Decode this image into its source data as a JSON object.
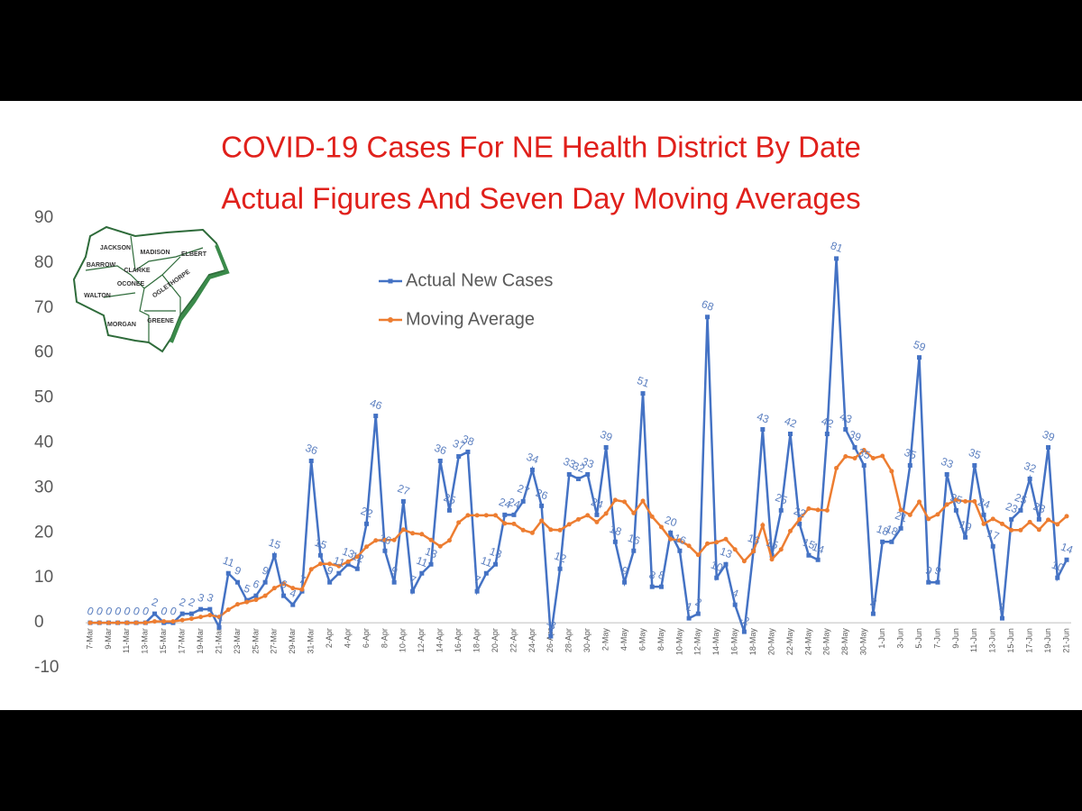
{
  "chart_data": {
    "type": "line",
    "title": "COVID-19 Cases For NE Health District By Date",
    "subtitle": "Actual Figures And Seven Day Moving Averages",
    "inset_map_labels": [
      "JACKSON",
      "MADISON",
      "ELBERT",
      "BARROW",
      "CLARKE",
      "OCONEE",
      "OGLETHORPE",
      "WALTON",
      "MORGAN",
      "GREENE"
    ],
    "categories": [
      "7-Mar",
      null,
      "9-Mar",
      null,
      "11-Mar",
      null,
      "13-Mar",
      null,
      "15-Mar",
      null,
      "17-Mar",
      null,
      "19-Mar",
      null,
      "21-Mar",
      null,
      "23-Mar",
      null,
      "25-Mar",
      null,
      "27-Mar",
      null,
      "29-Mar",
      null,
      "31-Mar",
      null,
      "2-Apr",
      null,
      "4-Apr",
      null,
      "6-Apr",
      null,
      "8-Apr",
      null,
      "10-Apr",
      null,
      "12-Apr",
      null,
      "14-Apr",
      null,
      "16-Apr",
      null,
      "18-Apr",
      null,
      "20-Apr",
      null,
      "22-Apr",
      null,
      "24-Apr",
      null,
      "26-Apr",
      null,
      "28-Apr",
      null,
      "30-Apr",
      null,
      "2-May",
      null,
      "4-May",
      null,
      "6-May",
      null,
      "8-May",
      null,
      "10-May",
      null,
      "12-May",
      null,
      "14-May",
      null,
      "16-May",
      null,
      "18-May",
      null,
      "20-May",
      null,
      "22-May",
      null,
      "24-May",
      null,
      "26-May",
      null,
      "28-May",
      null,
      "30-May",
      null,
      "1-Jun",
      null,
      "3-Jun",
      null,
      "5-Jun",
      null,
      "7-Jun",
      null,
      "9-Jun",
      null,
      "11-Jun",
      null,
      "13-Jun",
      null,
      "15-Jun",
      null,
      "17-Jun",
      null,
      "19-Jun",
      null,
      "21-Jun"
    ],
    "series": [
      {
        "name": "Actual New Cases",
        "color": "#4472c4",
        "marker": "square",
        "values": [
          0,
          0,
          0,
          0,
          0,
          0,
          0,
          2,
          0,
          0,
          2,
          2,
          3,
          3,
          -1,
          11,
          9,
          5,
          6,
          9,
          15,
          6,
          4,
          7,
          36,
          15,
          9,
          11,
          13,
          12,
          22,
          46,
          16,
          9,
          27,
          7,
          11,
          13,
          36,
          25,
          37,
          38,
          7,
          11,
          13,
          24,
          24,
          27,
          34,
          26,
          -3,
          12,
          33,
          32,
          33,
          24,
          39,
          18,
          9,
          16,
          51,
          8,
          8,
          20,
          16,
          1,
          2,
          68,
          10,
          13,
          4,
          -2,
          16,
          43,
          15,
          25,
          42,
          22,
          15,
          14,
          42,
          81,
          43,
          39,
          35,
          2,
          18,
          18,
          21,
          35,
          59,
          9,
          9,
          33,
          25,
          19,
          35,
          24,
          17,
          1,
          23,
          25,
          32,
          23,
          39,
          10,
          14
        ]
      },
      {
        "name": "Moving Average",
        "color": "#ed7d31",
        "marker": "circle",
        "values": [
          0,
          0,
          0,
          0,
          0,
          0,
          0,
          0.3,
          0.3,
          0.3,
          0.6,
          0.9,
          1.3,
          1.7,
          1.3,
          2.9,
          4.1,
          4.6,
          5.1,
          6,
          7.7,
          8.7,
          7.7,
          7.4,
          11.9,
          13.1,
          13.1,
          12.6,
          13.6,
          14.7,
          16.9,
          18.3,
          18.4,
          18.4,
          20.7,
          19.9,
          19.7,
          18.4,
          17,
          18.3,
          22.3,
          23.9,
          23.9,
          23.9,
          23.9,
          22.1,
          22,
          20.6,
          20,
          22.7,
          20.7,
          20.6,
          21.9,
          23,
          23.9,
          22.4,
          24.3,
          27.3,
          26.9,
          24.4,
          27.1,
          23.6,
          21.3,
          18.6,
          18.3,
          17.1,
          15.1,
          17.6,
          17.9,
          18.6,
          16.3,
          13.7,
          15.9,
          21.7,
          14.1,
          16.3,
          20.4,
          23,
          25.4,
          25.1,
          25,
          34.4,
          37,
          36.6,
          38.4,
          36.6,
          37.1,
          33.7,
          25.1,
          24,
          26.9,
          23.1,
          24.1,
          26.3,
          27.3,
          27,
          27,
          22,
          23.1,
          22,
          20.6,
          20.6,
          22.4,
          20.7,
          22.9,
          21.9,
          23.7
        ]
      }
    ],
    "ylim": [
      -10,
      90
    ],
    "yticks": [
      -10,
      0,
      10,
      20,
      30,
      40,
      50,
      60,
      70,
      80,
      90
    ],
    "grid": false,
    "data_labels_series": 0
  }
}
